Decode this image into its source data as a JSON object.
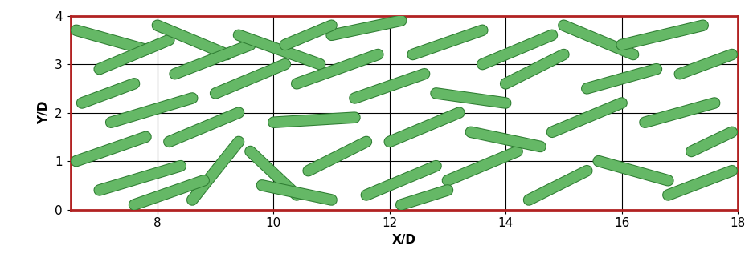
{
  "chart_data": {
    "type": "isosurface",
    "xlabel": "X/D",
    "ylabel": "Y/D",
    "xlim": [
      6.5,
      18
    ],
    "ylim": [
      0,
      4
    ],
    "xticks": [
      8,
      10,
      12,
      14,
      16,
      18
    ],
    "yticks": [
      0,
      1,
      2,
      3,
      4
    ],
    "grid": true,
    "color": "#6cbf6c",
    "structures": [
      [
        6.6,
        3.7,
        7.8,
        3.3
      ],
      [
        7.0,
        2.9,
        8.2,
        3.5
      ],
      [
        6.7,
        2.2,
        7.6,
        2.6
      ],
      [
        7.2,
        1.8,
        8.6,
        2.3
      ],
      [
        6.6,
        1.0,
        7.8,
        1.5
      ],
      [
        7.0,
        0.4,
        8.4,
        0.9
      ],
      [
        8.0,
        3.8,
        9.2,
        3.2
      ],
      [
        8.3,
        2.8,
        9.6,
        3.4
      ],
      [
        8.2,
        1.4,
        9.4,
        2.0
      ],
      [
        8.6,
        0.2,
        9.4,
        1.4
      ],
      [
        9.0,
        2.4,
        10.2,
        3.0
      ],
      [
        9.4,
        3.6,
        10.8,
        3.0
      ],
      [
        9.6,
        1.2,
        10.4,
        0.3
      ],
      [
        10.0,
        1.8,
        11.4,
        1.9
      ],
      [
        10.4,
        2.6,
        11.8,
        3.2
      ],
      [
        10.6,
        0.8,
        11.6,
        1.4
      ],
      [
        11.0,
        3.6,
        12.2,
        3.9
      ],
      [
        11.4,
        2.3,
        12.6,
        2.8
      ],
      [
        11.6,
        0.3,
        12.8,
        0.9
      ],
      [
        12.0,
        1.4,
        13.2,
        2.0
      ],
      [
        12.4,
        3.2,
        13.6,
        3.7
      ],
      [
        12.8,
        2.4,
        14.0,
        2.2
      ],
      [
        13.0,
        0.6,
        14.2,
        1.2
      ],
      [
        13.4,
        1.6,
        14.6,
        1.3
      ],
      [
        13.6,
        3.0,
        14.8,
        3.6
      ],
      [
        14.0,
        2.6,
        15.0,
        3.2
      ],
      [
        14.4,
        0.2,
        15.4,
        0.8
      ],
      [
        14.8,
        1.6,
        16.0,
        2.2
      ],
      [
        15.0,
        3.8,
        16.2,
        3.2
      ],
      [
        15.4,
        2.5,
        16.6,
        2.9
      ],
      [
        15.6,
        1.0,
        16.8,
        0.6
      ],
      [
        16.0,
        3.4,
        17.4,
        3.8
      ],
      [
        16.4,
        1.8,
        17.6,
        2.2
      ],
      [
        16.8,
        0.3,
        17.9,
        0.8
      ],
      [
        17.0,
        2.8,
        17.9,
        3.2
      ],
      [
        17.2,
        1.2,
        17.9,
        1.6
      ],
      [
        9.8,
        0.5,
        11.0,
        0.2
      ],
      [
        12.2,
        0.1,
        13.0,
        0.4
      ],
      [
        7.6,
        0.1,
        8.8,
        0.6
      ],
      [
        10.2,
        3.4,
        11.0,
        3.8
      ]
    ]
  }
}
